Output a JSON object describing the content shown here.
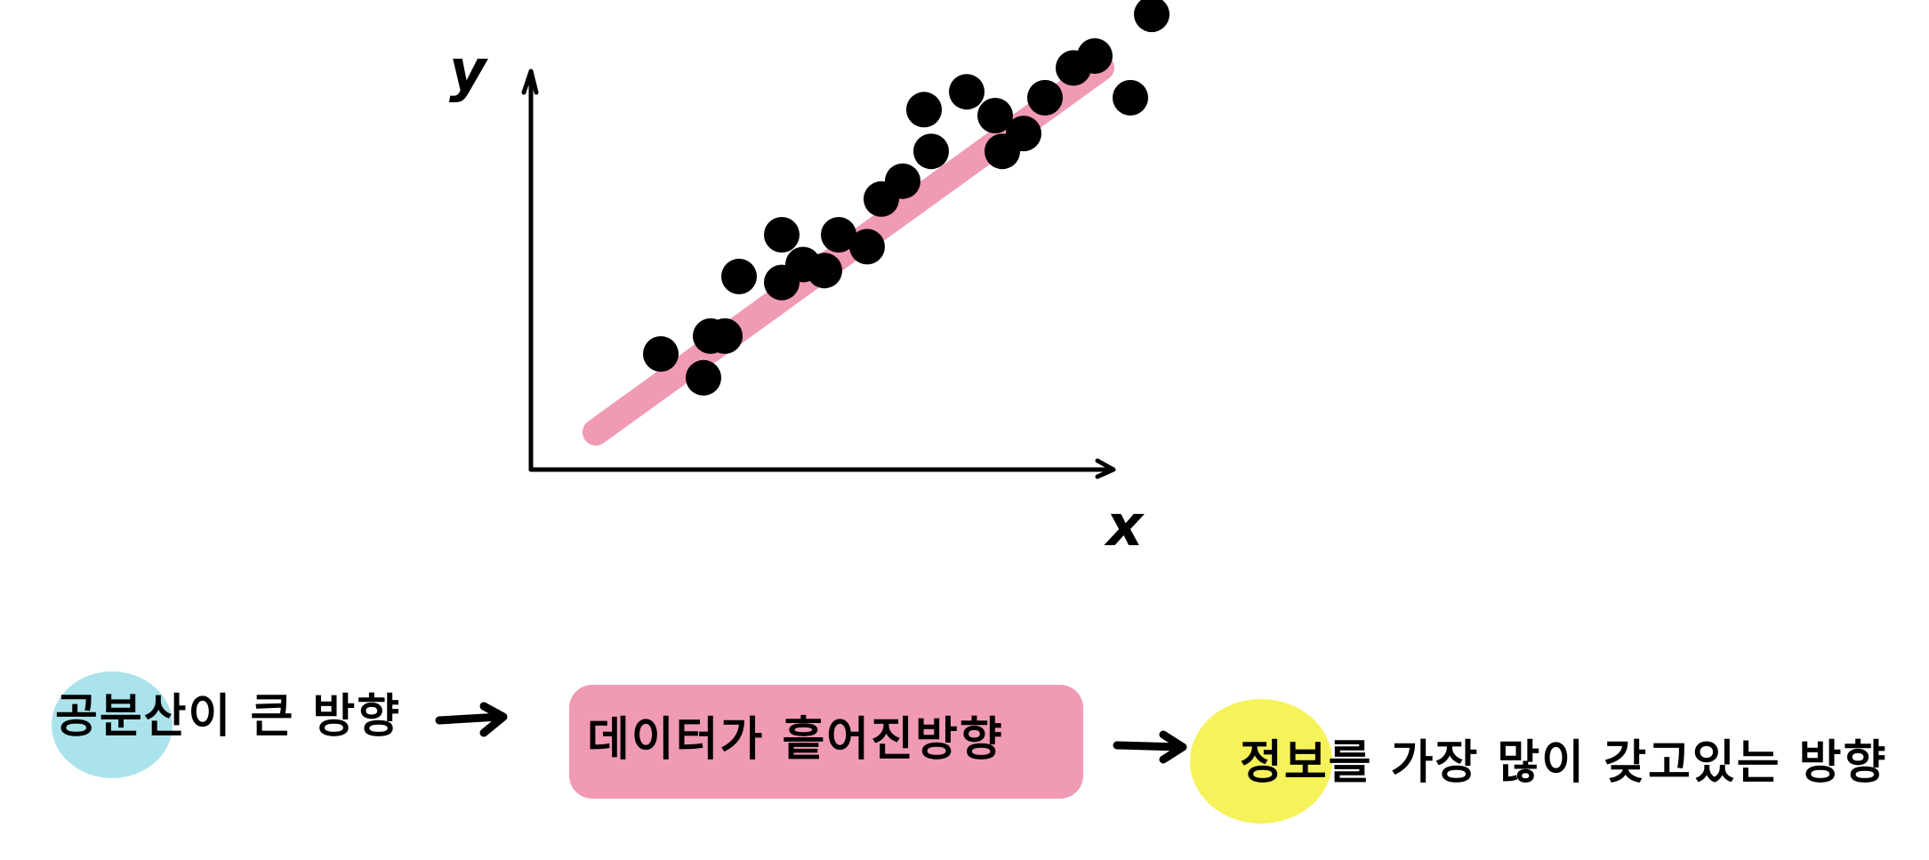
{
  "diagram": {
    "axes": {
      "x_label": "x",
      "y_label": "y"
    },
    "line_color": "#f09ab4",
    "point_color": "#000000",
    "points": [
      [
        1,
        1
      ],
      [
        1.6,
        0.6
      ],
      [
        1.7,
        1.3
      ],
      [
        1.9,
        1.3
      ],
      [
        2.1,
        2.3
      ],
      [
        2.7,
        2.2
      ],
      [
        2.7,
        3.0
      ],
      [
        3.0,
        2.5
      ],
      [
        3.3,
        2.4
      ],
      [
        3.5,
        3.0
      ],
      [
        3.9,
        2.8
      ],
      [
        4.1,
        3.6
      ],
      [
        4.4,
        3.9
      ],
      [
        4.8,
        4.4
      ],
      [
        4.7,
        5.1
      ],
      [
        5.3,
        5.4
      ],
      [
        5.7,
        5.0
      ],
      [
        5.8,
        4.4
      ],
      [
        6.1,
        4.7
      ],
      [
        6.4,
        5.3
      ],
      [
        6.8,
        5.8
      ],
      [
        7.1,
        6.0
      ],
      [
        7.6,
        5.3
      ],
      [
        7.9,
        6.7
      ]
    ]
  },
  "annotations": [
    {
      "text": "공분산이 큰 방향",
      "highlight": "#abe3ec"
    },
    {
      "text": "데이터가 흩어진방향",
      "highlight": "#f09ab4"
    },
    {
      "text": "정보를 가장 많이 갖고있는 방향",
      "highlight": "#f6f25a"
    }
  ]
}
